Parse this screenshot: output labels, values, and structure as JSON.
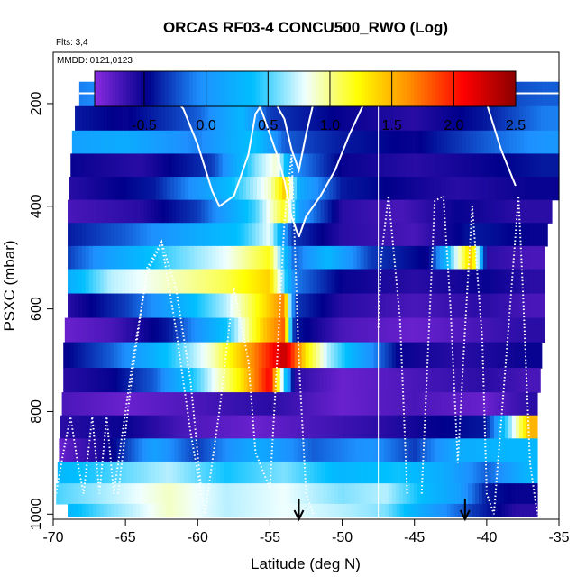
{
  "chart_data": {
    "type": "heatmap",
    "title": "ORCAS RF03-4 CONCU500_RWO (Log)",
    "flights_note": "Flts: 3,4",
    "date_note": "MMDD: 0121,0123",
    "xlabel": "Latitude (deg N)",
    "ylabel": "PSXC (mbar)",
    "xlim": [
      -70,
      -35
    ],
    "ylim": [
      1010,
      100
    ],
    "x_ticks": [
      "-70",
      "-65",
      "-60",
      "-55",
      "-50",
      "-45",
      "-40",
      "-35"
    ],
    "y_ticks": [
      "200",
      "400",
      "600",
      "800",
      "1000"
    ],
    "colorbar": {
      "min": -0.9,
      "max": 2.5,
      "ticks": [
        "-0.5",
        "0.0",
        "0.5",
        "1.0",
        "1.5",
        "2.0",
        "2.5"
      ],
      "colors": [
        "#8a2be2",
        "#00008b",
        "#1e90ff",
        "#00bfff",
        "#f0ffff",
        "#ffff00",
        "#ff8c00",
        "#ff0000",
        "#8b0000"
      ]
    },
    "flight_divider_lat": -47.5,
    "arrows_lat": [
      -53,
      -41.5
    ],
    "layers": [
      {
        "p": 180,
        "lat_start": -68.2,
        "lat_end": -35,
        "segments": [
          [
            -68.2,
            -0.1
          ],
          [
            -65,
            0.0
          ],
          [
            -62,
            -0.3
          ],
          [
            -58,
            -0.2
          ],
          [
            -55,
            -0.4
          ],
          [
            -52,
            -0.3
          ],
          [
            -48,
            0.0
          ],
          [
            -45,
            -0.4
          ],
          [
            -40,
            -0.3
          ],
          [
            -36,
            -0.2
          ]
        ]
      },
      {
        "p": 230,
        "lat_start": -68.5,
        "lat_end": -35,
        "segments": [
          [
            -68.5,
            -0.4
          ],
          [
            -65,
            -0.5
          ],
          [
            -60,
            -0.2
          ],
          [
            -57,
            0.3
          ],
          [
            -55,
            -0.3
          ],
          [
            -50,
            -0.5
          ],
          [
            -45,
            -0.6
          ],
          [
            -40,
            -0.4
          ],
          [
            -36,
            -0.1
          ]
        ]
      },
      {
        "p": 275,
        "lat_start": -68.7,
        "lat_end": -35,
        "segments": [
          [
            -68.7,
            0.1
          ],
          [
            -65,
            0.2
          ],
          [
            -60,
            -0.1
          ],
          [
            -56,
            0.4
          ],
          [
            -54,
            -0.2
          ],
          [
            -50,
            -0.4
          ],
          [
            -45,
            -0.5
          ],
          [
            -40,
            -0.2
          ],
          [
            -36,
            0.0
          ]
        ]
      },
      {
        "p": 320,
        "lat_start": -68.8,
        "lat_end": -35,
        "segments": [
          [
            -68.8,
            -0.5
          ],
          [
            -64,
            -0.6
          ],
          [
            -59,
            -0.3
          ],
          [
            -56,
            0.6
          ],
          [
            -54.5,
            0.9
          ],
          [
            -53.5,
            0.0
          ],
          [
            -50,
            -0.5
          ],
          [
            -45,
            -0.6
          ],
          [
            -40,
            -0.5
          ],
          [
            -36,
            -0.4
          ]
        ]
      },
      {
        "p": 365,
        "lat_start": -68.9,
        "lat_end": -35,
        "segments": [
          [
            -68.9,
            -0.6
          ],
          [
            -63,
            -0.4
          ],
          [
            -58,
            0.3
          ],
          [
            -55,
            0.9
          ],
          [
            -54,
            1.4
          ],
          [
            -53,
            0.2
          ],
          [
            -50,
            -0.4
          ],
          [
            -46,
            -0.5
          ],
          [
            -42,
            -0.6
          ],
          [
            -37,
            -0.5
          ]
        ]
      },
      {
        "p": 410,
        "lat_start": -69,
        "lat_end": -35.5,
        "segments": [
          [
            -69,
            -0.7
          ],
          [
            -64,
            -0.6
          ],
          [
            -60,
            -0.3
          ],
          [
            -56,
            0.5
          ],
          [
            -54,
            1.2
          ],
          [
            -53,
            0.1
          ],
          [
            -50,
            -0.6
          ],
          [
            -46,
            -0.7
          ],
          [
            -42,
            -0.5
          ],
          [
            -38,
            -0.6
          ]
        ]
      },
      {
        "p": 455,
        "lat_start": -69,
        "lat_end": -35.8,
        "segments": [
          [
            -69,
            -0.4
          ],
          [
            -65,
            -0.2
          ],
          [
            -60,
            0.2
          ],
          [
            -57,
            0.4
          ],
          [
            -55,
            0.8
          ],
          [
            -53.5,
            -0.3
          ],
          [
            -50,
            -0.6
          ],
          [
            -45,
            -0.7
          ],
          [
            -41,
            -0.4
          ],
          [
            -37,
            -0.5
          ]
        ]
      },
      {
        "p": 500,
        "lat_start": -69,
        "lat_end": -36,
        "segments": [
          [
            -69,
            -0.3
          ],
          [
            -66,
            0.1
          ],
          [
            -62,
            0.5
          ],
          [
            -58,
            0.8
          ],
          [
            -55,
            1.2
          ],
          [
            -53.3,
            -0.2
          ],
          [
            -51,
            0.3
          ],
          [
            -48,
            -0.3
          ],
          [
            -44,
            -0.5
          ],
          [
            -41,
            1.5
          ],
          [
            -40,
            -0.6
          ],
          [
            -37,
            -0.7
          ]
        ]
      },
      {
        "p": 545,
        "lat_start": -69,
        "lat_end": -36,
        "segments": [
          [
            -69,
            0.2
          ],
          [
            -66,
            0.7
          ],
          [
            -62,
            0.9
          ],
          [
            -58,
            1.1
          ],
          [
            -55,
            1.4
          ],
          [
            -53.3,
            -0.1
          ],
          [
            -50,
            -0.5
          ],
          [
            -45,
            -0.6
          ],
          [
            -40,
            -0.5
          ],
          [
            -37,
            -0.6
          ]
        ]
      },
      {
        "p": 595,
        "lat_start": -69,
        "lat_end": -36,
        "segments": [
          [
            -69,
            -0.6
          ],
          [
            -65,
            -0.3
          ],
          [
            -62,
            0.1
          ],
          [
            -58,
            0.7
          ],
          [
            -55.5,
            1.3
          ],
          [
            -54,
            1.7
          ],
          [
            -53.3,
            -0.3
          ],
          [
            -50,
            -0.6
          ],
          [
            -45,
            -0.7
          ],
          [
            -40,
            -0.6
          ],
          [
            -37,
            -0.7
          ]
        ]
      },
      {
        "p": 640,
        "lat_start": -69.2,
        "lat_end": -36,
        "segments": [
          [
            -69.2,
            -0.8
          ],
          [
            -66,
            -0.7
          ],
          [
            -62,
            -0.4
          ],
          [
            -58,
            0.4
          ],
          [
            -55.5,
            1.4
          ],
          [
            -54,
            1.8
          ],
          [
            -53.3,
            -0.4
          ],
          [
            -50,
            -0.7
          ],
          [
            -45,
            -0.8
          ],
          [
            -41,
            -0.7
          ],
          [
            -37,
            -0.6
          ]
        ]
      },
      {
        "p": 690,
        "lat_start": -69.3,
        "lat_end": -36.2,
        "segments": [
          [
            -69.3,
            -0.5
          ],
          [
            -66,
            -0.2
          ],
          [
            -62,
            0.4
          ],
          [
            -59,
            0.9
          ],
          [
            -56,
            1.7
          ],
          [
            -54,
            2.3
          ],
          [
            -52.5,
            1.3
          ],
          [
            -51,
            0.7
          ],
          [
            -49,
            0.2
          ],
          [
            -46,
            -0.5
          ],
          [
            -42,
            -0.6
          ],
          [
            -37,
            -0.5
          ]
        ]
      },
      {
        "p": 740,
        "lat_start": -69.3,
        "lat_end": -36.3,
        "segments": [
          [
            -69.3,
            -0.6
          ],
          [
            -66,
            -0.5
          ],
          [
            -63,
            -0.2
          ],
          [
            -60,
            0.5
          ],
          [
            -57,
            1.3
          ],
          [
            -55,
            2.1
          ],
          [
            -53.3,
            -0.6
          ],
          [
            -50,
            -0.8
          ],
          [
            -45,
            -0.7
          ],
          [
            -40,
            -0.6
          ],
          [
            -37,
            -0.7
          ]
        ]
      },
      {
        "p": 785,
        "lat_start": -69.4,
        "lat_end": -36.5,
        "segments": [
          [
            -69.4,
            -0.7
          ],
          [
            -65,
            -0.8
          ],
          [
            -60,
            -0.7
          ],
          [
            -55,
            -0.6
          ],
          [
            -50,
            -0.8
          ],
          [
            -45,
            -0.7
          ],
          [
            -40,
            -0.8
          ],
          [
            -37,
            -0.6
          ]
        ]
      },
      {
        "p": 830,
        "lat_start": -69.5,
        "lat_end": -36.5,
        "segments": [
          [
            -69.5,
            -0.6
          ],
          [
            -65,
            -0.5
          ],
          [
            -61,
            -0.7
          ],
          [
            -56,
            -0.8
          ],
          [
            -52,
            -0.7
          ],
          [
            -47,
            -0.6
          ],
          [
            -44,
            -0.5
          ],
          [
            -40,
            -0.4
          ],
          [
            -37,
            1.5
          ]
        ]
      },
      {
        "p": 875,
        "lat_start": -69.6,
        "lat_end": -36.5,
        "segments": [
          [
            -69.6,
            -0.8
          ],
          [
            -66,
            -0.5
          ],
          [
            -63,
            0.1
          ],
          [
            -60,
            -0.3
          ],
          [
            -56,
            0.2
          ],
          [
            -52,
            -0.2
          ],
          [
            -48,
            0.0
          ],
          [
            -45,
            -0.3
          ],
          [
            -42,
            0.2
          ],
          [
            -38,
            0.3
          ]
        ]
      },
      {
        "p": 920,
        "lat_start": -69.7,
        "lat_end": -36.5,
        "segments": [
          [
            -69.7,
            0.3
          ],
          [
            -66,
            0.5
          ],
          [
            -62,
            0.7
          ],
          [
            -58,
            0.4
          ],
          [
            -54,
            0.6
          ],
          [
            -50,
            0.3
          ],
          [
            -46,
            0.4
          ],
          [
            -43,
            0.2
          ],
          [
            -40,
            -0.2
          ],
          [
            -37,
            0.3
          ]
        ]
      },
      {
        "p": 960,
        "lat_start": -69.8,
        "lat_end": -36.5,
        "segments": [
          [
            -69.8,
            0.5
          ],
          [
            -66,
            0.7
          ],
          [
            -62,
            0.9
          ],
          [
            -58,
            0.7
          ],
          [
            -54,
            0.8
          ],
          [
            -50,
            0.6
          ],
          [
            -47,
            0.7
          ],
          [
            -44,
            0.3
          ],
          [
            -42,
            0.1
          ],
          [
            -40,
            -0.4
          ],
          [
            -38,
            -0.5
          ]
        ]
      },
      {
        "p": 1000,
        "lat_start": -69,
        "lat_end": -36.5,
        "segments": [
          [
            -69,
            0.3
          ],
          [
            -66,
            0.6
          ],
          [
            -62,
            0.9
          ],
          [
            -58,
            0.7
          ],
          [
            -54,
            0.8
          ],
          [
            -50,
            0.7
          ],
          [
            -47,
            0.6
          ],
          [
            -44,
            0.1
          ],
          [
            -41,
            -0.3
          ],
          [
            -38,
            -0.6
          ]
        ]
      }
    ],
    "flight_track_solid": [
      [
        -68.2,
        180
      ],
      [
        -67.5,
        180
      ],
      [
        -66.5,
        180
      ],
      [
        -65.5,
        180
      ],
      [
        -64,
        180
      ],
      [
        -62,
        180
      ],
      [
        -61,
        210
      ],
      [
        -60,
        280
      ],
      [
        -59,
        370
      ],
      [
        -58.5,
        400
      ],
      [
        -57.5,
        380
      ],
      [
        -56.5,
        300
      ],
      [
        -56,
        220
      ],
      [
        -55,
        180
      ],
      [
        -54,
        230
      ],
      [
        -53.5,
        290
      ],
      [
        -53,
        330
      ],
      [
        -52.5,
        260
      ],
      [
        -52,
        200
      ],
      [
        -51,
        180
      ],
      [
        -50,
        180
      ],
      [
        -49,
        180
      ],
      [
        -48,
        180
      ]
    ],
    "flight_track_solid2": [
      [
        -59,
        180
      ],
      [
        -58,
        180
      ],
      [
        -57,
        180
      ],
      [
        -56.5,
        180
      ],
      [
        -56,
        190
      ],
      [
        -55.5,
        220
      ],
      [
        -55,
        260
      ],
      [
        -54.5,
        300
      ],
      [
        -54,
        350
      ],
      [
        -53.5,
        420
      ],
      [
        -53,
        460
      ]
    ],
    "flight_track_solid3": [
      [
        -38,
        360
      ],
      [
        -39,
        290
      ],
      [
        -40,
        200
      ],
      [
        -40.5,
        180
      ],
      [
        -38,
        180
      ],
      [
        -36,
        180
      ],
      [
        -35,
        180
      ]
    ],
    "flight_track_solid4": [
      [
        -47.5,
        180
      ],
      [
        -48.5,
        200
      ],
      [
        -49.5,
        260
      ],
      [
        -50.5,
        330
      ],
      [
        -51.5,
        380
      ],
      [
        -52.5,
        420
      ],
      [
        -53,
        460
      ]
    ],
    "flight_track_dotted": [
      [
        -69.8,
        960
      ],
      [
        -69.3,
        880
      ],
      [
        -68.8,
        810
      ],
      [
        -68.3,
        900
      ],
      [
        -67.9,
        960
      ],
      [
        -67.3,
        810
      ],
      [
        -66.8,
        960
      ],
      [
        -66.3,
        810
      ],
      [
        -65.8,
        960
      ],
      [
        -64.5,
        700
      ],
      [
        -63.5,
        530
      ],
      [
        -62.5,
        470
      ],
      [
        -61.5,
        640
      ],
      [
        -60.5,
        840
      ],
      [
        -59.5,
        1000
      ],
      [
        -58.5,
        800
      ],
      [
        -57.5,
        560
      ],
      [
        -56.5,
        700
      ],
      [
        -56,
        880
      ],
      [
        -55,
        950
      ],
      [
        -54.5,
        700
      ],
      [
        -54,
        430
      ],
      [
        -53.5,
        300
      ],
      [
        -53,
        700
      ],
      [
        -52.5,
        960
      ],
      [
        -52,
        1000
      ]
    ],
    "flight_track_dotted2": [
      [
        -65.5,
        960
      ],
      [
        -64.5,
        720
      ],
      [
        -63.5,
        520
      ],
      [
        -62.5,
        470
      ],
      [
        -61.5,
        560
      ],
      [
        -60.5,
        740
      ],
      [
        -59.8,
        940
      ]
    ],
    "flight_track_dotted3": [
      [
        -45.5,
        960
      ],
      [
        -46,
        620
      ],
      [
        -46.8,
        380
      ],
      [
        -47.3,
        500
      ],
      [
        -47.5,
        640
      ]
    ],
    "flight_track_dotted4": [
      [
        -44.5,
        960
      ],
      [
        -43.6,
        390
      ],
      [
        -43,
        380
      ],
      [
        -42.5,
        600
      ],
      [
        -42,
        900
      ],
      [
        -41.5,
        640
      ],
      [
        -41,
        400
      ],
      [
        -40.3,
        660
      ],
      [
        -40,
        960
      ],
      [
        -39.5,
        1000
      ],
      [
        -38.5,
        640
      ],
      [
        -37.8,
        380
      ],
      [
        -37.5,
        560
      ],
      [
        -37,
        900
      ],
      [
        -36.5,
        1000
      ]
    ]
  }
}
